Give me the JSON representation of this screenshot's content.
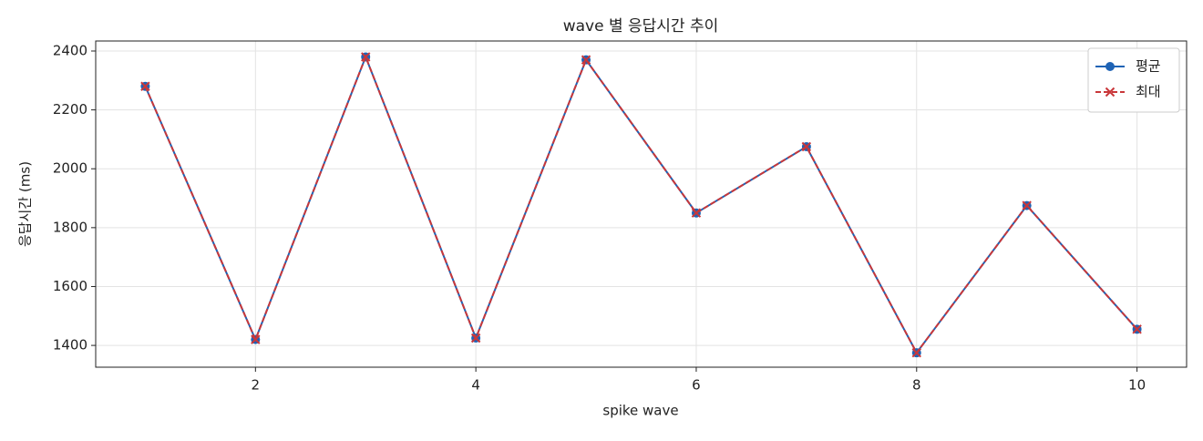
{
  "chart_data": {
    "type": "line",
    "title": "wave 별 응답시간 추이",
    "x_label": "spike wave",
    "y_label": "응답시간 (ms)",
    "x": [
      1,
      2,
      3,
      4,
      5,
      6,
      7,
      8,
      9,
      10
    ],
    "series": [
      {
        "name": "평균",
        "color": "#1f63b5",
        "marker": "o",
        "linestyle": "solid",
        "values": [
          2280,
          1420,
          2380,
          1425,
          2370,
          1850,
          2075,
          1375,
          1875,
          1455
        ]
      },
      {
        "name": "최대",
        "color": "#c9373a",
        "marker": "x",
        "linestyle": "dashed",
        "values": [
          2280,
          1420,
          2380,
          1425,
          2370,
          1850,
          2075,
          1375,
          1875,
          1455
        ]
      }
    ],
    "xlim": [
      0.55,
      10.45
    ],
    "xticks": [
      2,
      4,
      6,
      8,
      10
    ],
    "ylim": [
      1326,
      2434
    ],
    "yticks": [
      1400,
      1600,
      1800,
      2000,
      2200,
      2400
    ],
    "grid": true,
    "legend": "upper right"
  }
}
